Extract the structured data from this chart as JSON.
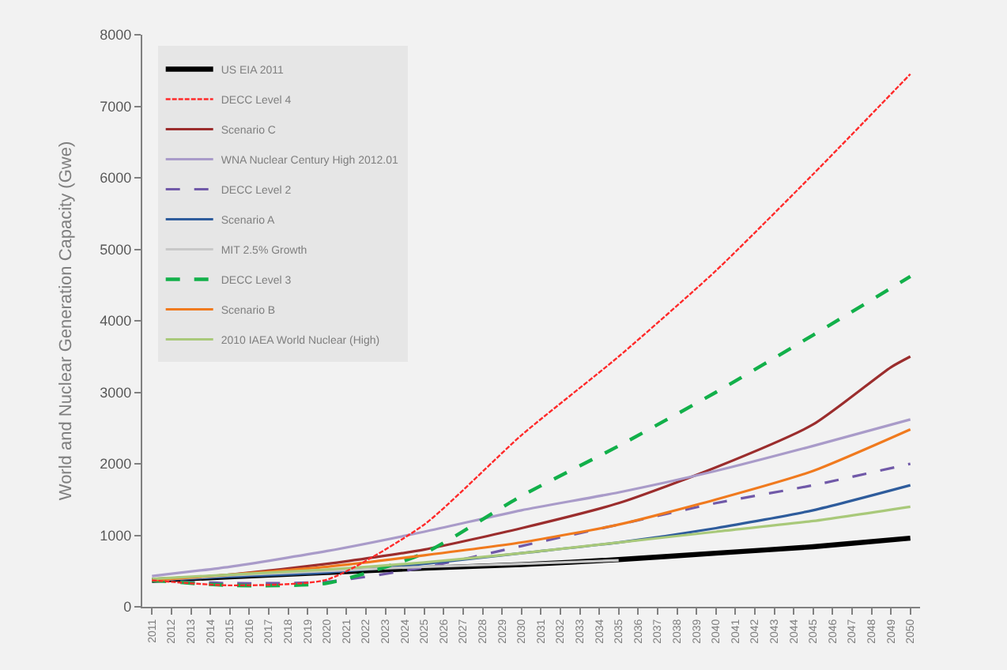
{
  "chart_data": {
    "type": "line",
    "ylabel": "World and Nuclear Generation Capacity (Gwe)",
    "xlim": [
      2010.5,
      2050.5
    ],
    "xticks": [
      2011,
      2012,
      2013,
      2014,
      2015,
      2016,
      2017,
      2018,
      2019,
      2020,
      2021,
      2022,
      2023,
      2024,
      2025,
      2026,
      2027,
      2028,
      2029,
      2030,
      2031,
      2032,
      2033,
      2034,
      2035,
      2036,
      2037,
      2038,
      2039,
      2040,
      2041,
      2042,
      2043,
      2044,
      2045,
      2046,
      2047,
      2048,
      2049,
      2050
    ],
    "ylim": [
      0,
      8000
    ],
    "yticks": [
      0,
      1000,
      2000,
      3000,
      4000,
      5000,
      6000,
      7000,
      8000
    ],
    "grid": false,
    "legend": "top left",
    "marker": "none",
    "series": [
      {
        "name": "US EIA 2011",
        "color": "#000000",
        "line_style": "solid",
        "x": [
          2011,
          2015,
          2020,
          2025,
          2030,
          2035,
          2040,
          2045,
          2050
        ],
        "values": [
          370,
          420,
          480,
          540,
          590,
          660,
          750,
          840,
          960
        ]
      },
      {
        "name": "DECC Level 4",
        "color": "#ff2a2a",
        "line_style": "dotted",
        "x": [
          2011,
          2015,
          2020,
          2025,
          2030,
          2035,
          2040,
          2045,
          2050
        ],
        "values": [
          370,
          300,
          380,
          1150,
          2400,
          3500,
          4700,
          6050,
          7450
        ]
      },
      {
        "name": "Scenario C",
        "color": "#9b2d2d",
        "line_style": "solid",
        "x": [
          2011,
          2015,
          2020,
          2025,
          2030,
          2035,
          2040,
          2045,
          2049,
          2050
        ],
        "values": [
          370,
          450,
          600,
          800,
          1100,
          1450,
          1950,
          2550,
          3350,
          3500
        ]
      },
      {
        "name": "WNA Nuclear Century High 2012.01",
        "color": "#a99bc9",
        "line_style": "solid",
        "x": [
          2011,
          2015,
          2020,
          2025,
          2030,
          2035,
          2040,
          2045,
          2050
        ],
        "values": [
          430,
          560,
          780,
          1050,
          1350,
          1600,
          1900,
          2250,
          2620
        ]
      },
      {
        "name": "DECC Level 2",
        "color": "#7059a8",
        "line_style": "dashed",
        "x": [
          2011,
          2015,
          2020,
          2025,
          2030,
          2035,
          2040,
          2045,
          2050
        ],
        "values": [
          370,
          330,
          350,
          550,
          850,
          1150,
          1450,
          1700,
          2000
        ]
      },
      {
        "name": "Scenario A",
        "color": "#2e5c9c",
        "line_style": "solid",
        "x": [
          2011,
          2015,
          2020,
          2025,
          2030,
          2035,
          2040,
          2045,
          2050
        ],
        "values": [
          370,
          420,
          480,
          600,
          750,
          900,
          1100,
          1350,
          1700
        ]
      },
      {
        "name": "MIT 2.5% Growth",
        "color": "#c8c8c8",
        "line_style": "solid",
        "x": [
          2011,
          2015,
          2020,
          2025,
          2030,
          2035
        ],
        "values": [
          370,
          440,
          500,
          560,
          600,
          650
        ]
      },
      {
        "name": "DECC Level 3",
        "color": "#12b04a",
        "line_style": "dashed",
        "x": [
          2011,
          2015,
          2020,
          2025,
          2030,
          2035,
          2040,
          2045,
          2050
        ],
        "values": [
          370,
          300,
          330,
          750,
          1550,
          2250,
          3000,
          3800,
          4620
        ]
      },
      {
        "name": "Scenario B",
        "color": "#f07a1e",
        "line_style": "solid",
        "x": [
          2011,
          2015,
          2020,
          2025,
          2030,
          2035,
          2040,
          2045,
          2050
        ],
        "values": [
          370,
          450,
          560,
          720,
          900,
          1150,
          1500,
          1900,
          2480
        ]
      },
      {
        "name": "2010 IAEA World Nuclear (High)",
        "color": "#a9c97a",
        "line_style": "solid",
        "x": [
          2011,
          2015,
          2020,
          2025,
          2030,
          2035,
          2040,
          2045,
          2050
        ],
        "values": [
          390,
          450,
          520,
          620,
          750,
          900,
          1050,
          1200,
          1400
        ]
      }
    ]
  }
}
